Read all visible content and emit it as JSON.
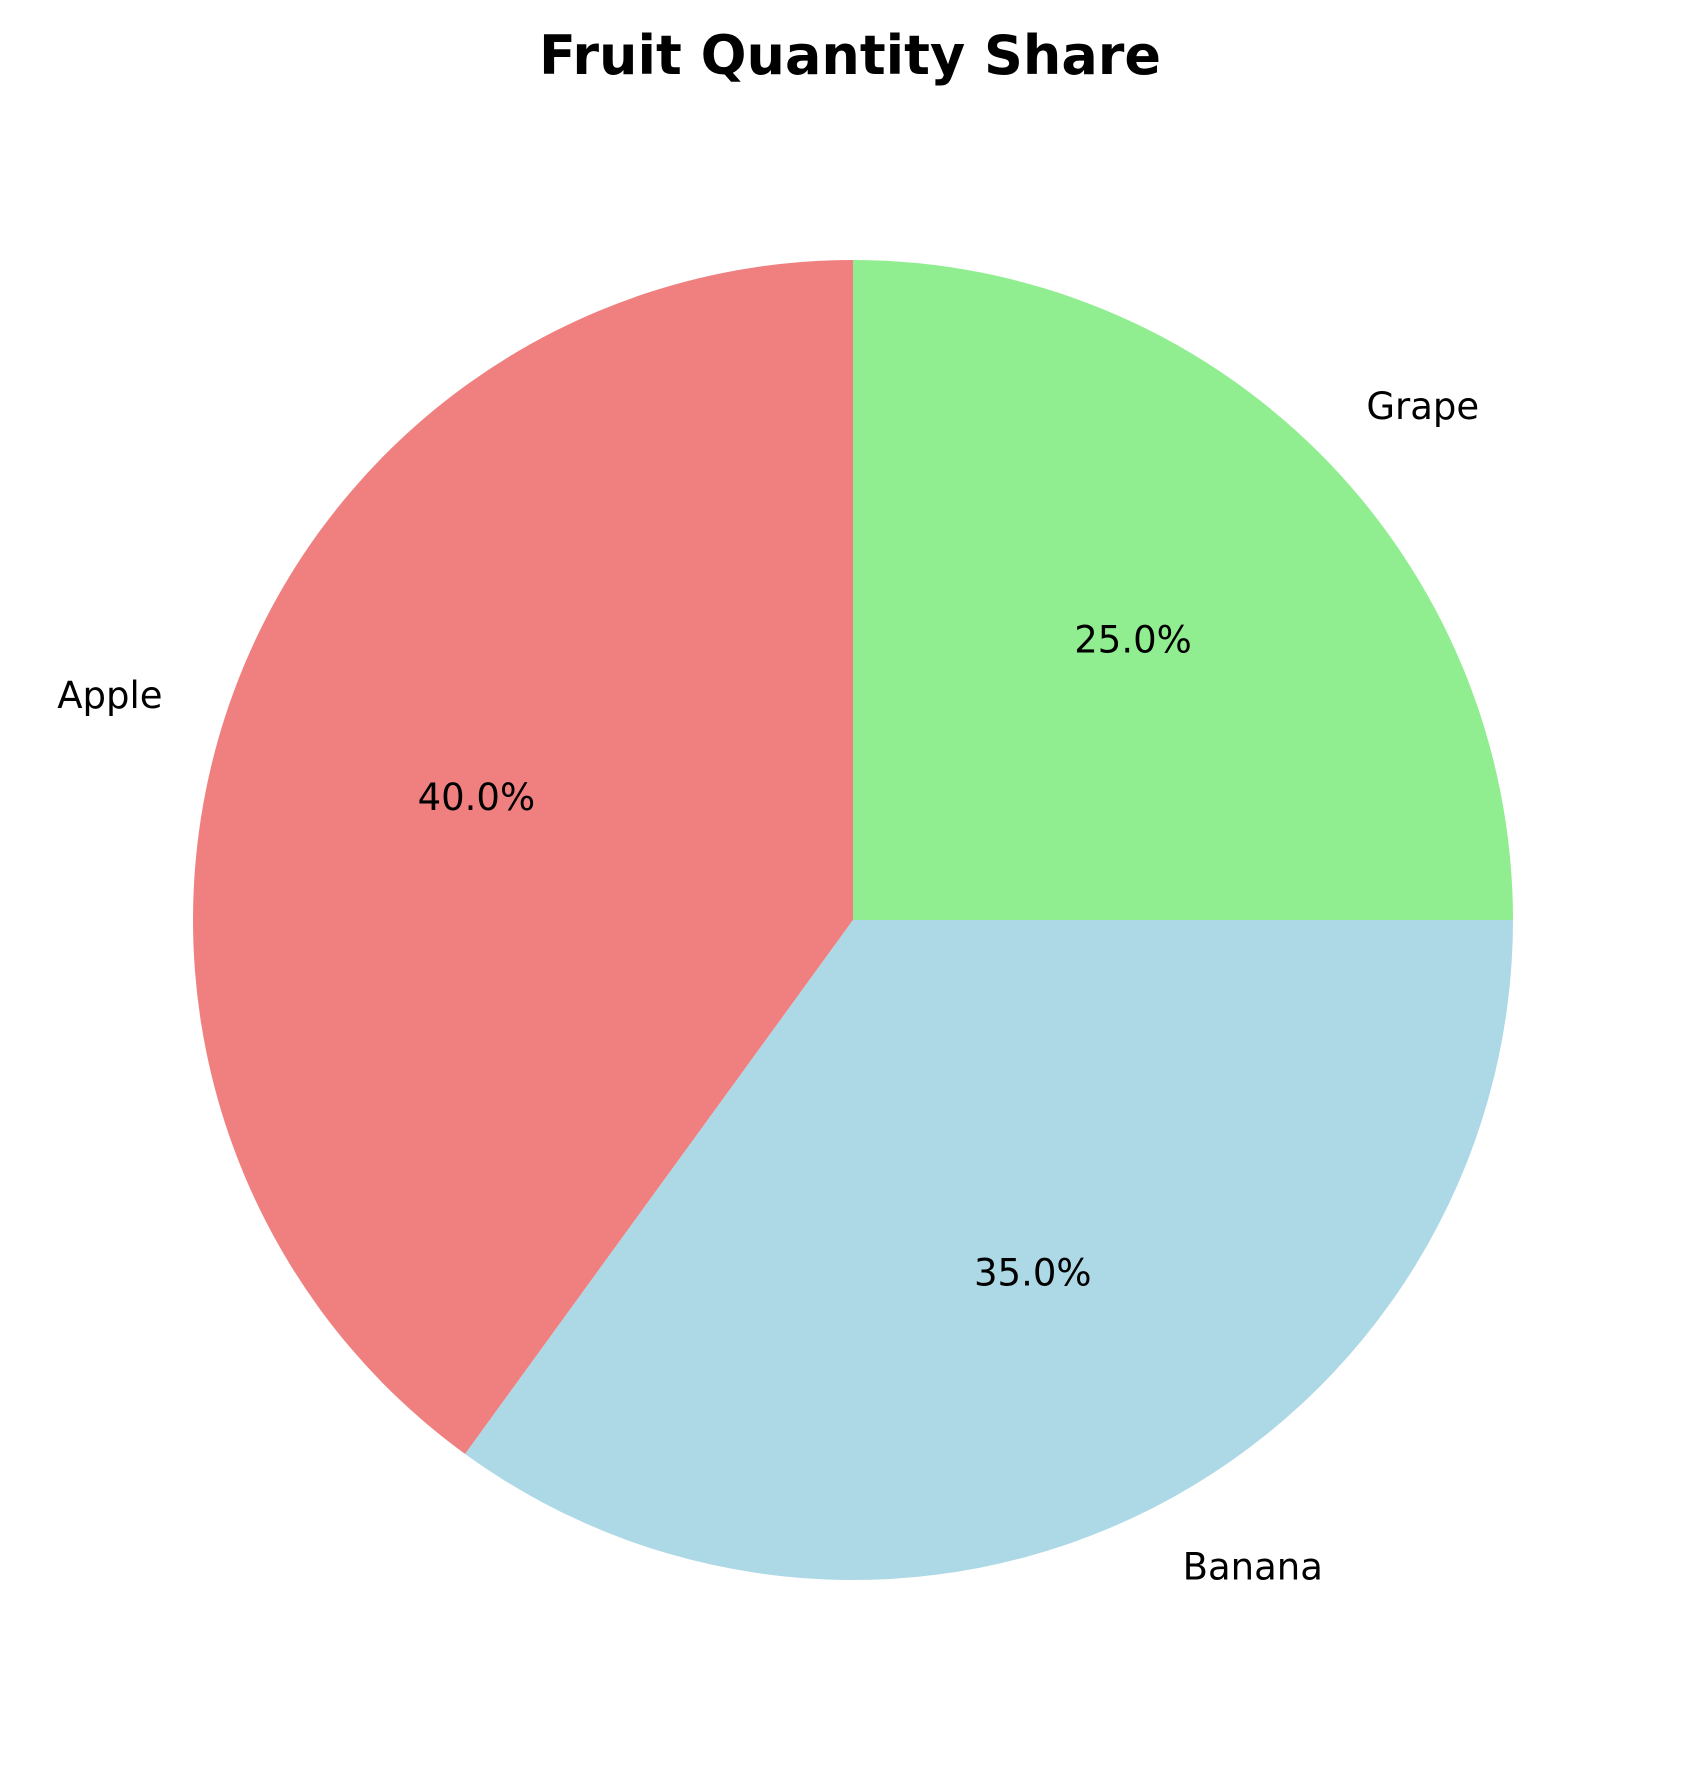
{
  "chart_data": {
    "type": "pie",
    "title": "Fruit Quantity Share",
    "categories": [
      "Apple",
      "Banana",
      "Grape"
    ],
    "values": [
      40.0,
      35.0,
      25.0
    ],
    "percent_labels": [
      "40.0%",
      "35.0%",
      "25.0%"
    ],
    "colors": [
      "#f08080",
      "#add8e6",
      "#90ee90"
    ],
    "start_angle_deg": 90,
    "direction": "counterclockwise",
    "legend": "none"
  }
}
